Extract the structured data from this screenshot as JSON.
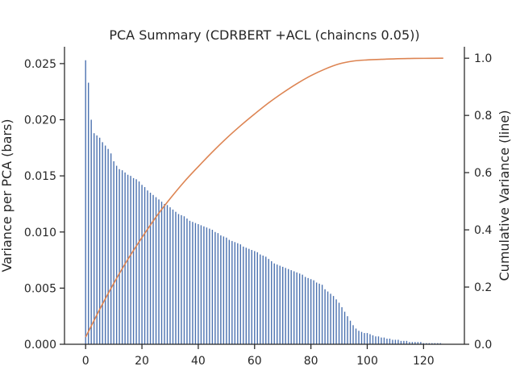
{
  "chart_data": {
    "type": "bar",
    "title": "PCA Summary (CDRBERT +ACL (chaincns 0.05))",
    "xlabel": "",
    "ylabel": "Variance per PCA (bars)",
    "y2label": "Cumulative Variance (line)",
    "xlim": [
      -7.5,
      134.5
    ],
    "ylim": [
      0,
      0.0265
    ],
    "y2lim": [
      0,
      1.04
    ],
    "x_ticks": [
      0,
      20,
      40,
      60,
      80,
      100,
      120
    ],
    "x_tick_labels": [
      "0",
      "20",
      "40",
      "60",
      "80",
      "100",
      "120"
    ],
    "y_ticks": [
      0,
      0.005,
      0.01,
      0.015,
      0.02,
      0.025
    ],
    "y_tick_labels": [
      "0.000",
      "0.005",
      "0.010",
      "0.015",
      "0.020",
      "0.025"
    ],
    "y2_ticks": [
      0,
      0.2,
      0.4,
      0.6,
      0.8,
      1.0
    ],
    "y2_tick_labels": [
      "0.0",
      "0.2",
      "0.4",
      "0.6",
      "0.8",
      "1.0"
    ],
    "grid": false,
    "series": [
      {
        "type": "bar",
        "axis": "left",
        "color": "#4c72b0",
        "values": [
          0.0253,
          0.0233,
          0.02,
          0.0188,
          0.0186,
          0.0184,
          0.018,
          0.0177,
          0.0174,
          0.017,
          0.0163,
          0.0159,
          0.0156,
          0.0155,
          0.0153,
          0.0151,
          0.015,
          0.0148,
          0.0147,
          0.0145,
          0.0142,
          0.014,
          0.0137,
          0.0135,
          0.0133,
          0.0131,
          0.0129,
          0.0127,
          0.0125,
          0.0124,
          0.0122,
          0.012,
          0.0118,
          0.0116,
          0.0115,
          0.0114,
          0.0112,
          0.011,
          0.0109,
          0.0108,
          0.0107,
          0.0106,
          0.0105,
          0.0104,
          0.0103,
          0.0102,
          0.01,
          0.0099,
          0.0097,
          0.0096,
          0.0095,
          0.0093,
          0.0092,
          0.0091,
          0.009,
          0.0089,
          0.0087,
          0.0086,
          0.0085,
          0.0084,
          0.0083,
          0.0082,
          0.008,
          0.0079,
          0.0078,
          0.0076,
          0.0074,
          0.0072,
          0.0071,
          0.007,
          0.0069,
          0.0068,
          0.0067,
          0.0066,
          0.0065,
          0.0064,
          0.0063,
          0.0062,
          0.006,
          0.0059,
          0.0058,
          0.0057,
          0.0055,
          0.0054,
          0.0053,
          0.0049,
          0.0047,
          0.0045,
          0.0043,
          0.004,
          0.0037,
          0.0033,
          0.0029,
          0.0025,
          0.0021,
          0.0017,
          0.0014,
          0.0012,
          0.0011,
          0.001,
          0.001,
          0.0009,
          0.0008,
          0.0007,
          0.0007,
          0.0006,
          0.0006,
          0.0005,
          0.0005,
          0.0004,
          0.0004,
          0.0004,
          0.0003,
          0.0003,
          0.0003,
          0.0002,
          0.0002,
          0.0002,
          0.0002,
          0.0002,
          0.0001,
          0.0001,
          0.0001,
          0.0001,
          0.0001,
          0.0001,
          0.0001
        ]
      },
      {
        "type": "line",
        "axis": "right",
        "color": "#dd8452",
        "x": [
          0,
          5,
          10,
          15,
          20,
          25,
          30,
          35,
          40,
          45,
          50,
          55,
          60,
          65,
          70,
          75,
          80,
          85,
          90,
          95,
          100,
          105,
          110,
          115,
          120,
          127
        ],
        "values": [
          0.025,
          0.122,
          0.213,
          0.297,
          0.373,
          0.445,
          0.509,
          0.568,
          0.621,
          0.672,
          0.72,
          0.764,
          0.805,
          0.844,
          0.879,
          0.911,
          0.939,
          0.962,
          0.98,
          0.99,
          0.994,
          0.996,
          0.998,
          0.999,
          0.9995,
          1.0
        ]
      }
    ]
  }
}
